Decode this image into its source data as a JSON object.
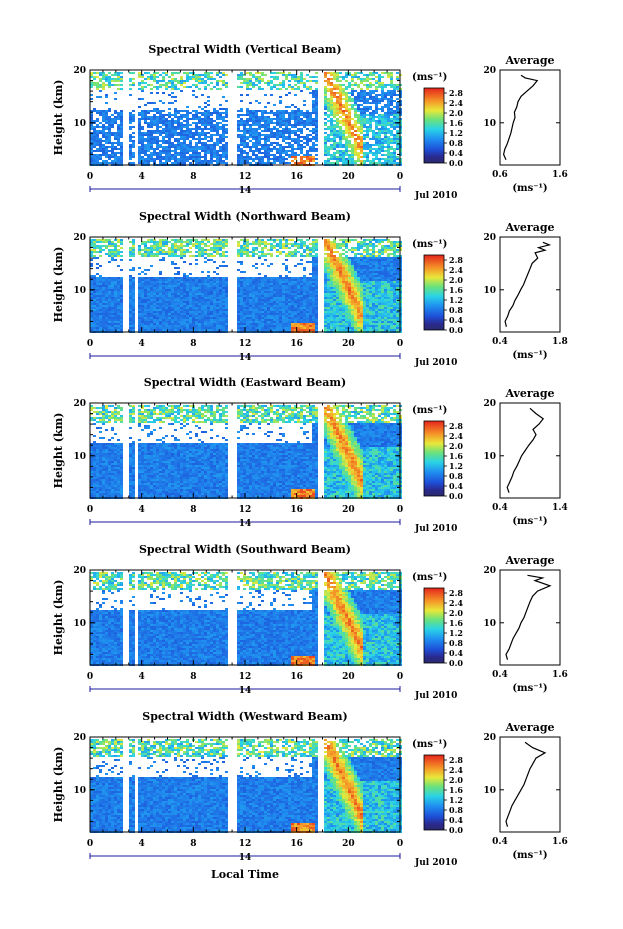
{
  "figure": {
    "xlabel": "Local Time",
    "date_label": "Jul 2010",
    "day_label": "14"
  },
  "chart_data": [
    {
      "type": "heatmap",
      "title": "Spectral Width (Vertical Beam)",
      "ylabel": "Height (km)",
      "x_ticks": [
        "0",
        "4",
        "8",
        "12",
        "16",
        "20",
        "0"
      ],
      "y_ticks": [
        "20",
        "10"
      ],
      "xlim": [
        0,
        24
      ],
      "ylim": [
        2,
        20
      ],
      "colorbar": {
        "unit": "(ms⁻¹)",
        "ticks": [
          "2.8",
          "2.4",
          "2.0",
          "1.6",
          "1.2",
          "0.8",
          "0.4",
          "0.0"
        ],
        "range": [
          0,
          3.0
        ]
      },
      "average": {
        "title": "Average",
        "x_ticks": [
          "0.6",
          "1.6"
        ],
        "xlim": [
          0.6,
          1.6
        ],
        "ylim": [
          2,
          20
        ],
        "y_ticks": [
          "20",
          "10"
        ],
        "xlabel": "(ms⁻¹)",
        "profile": [
          [
            0.7,
            3
          ],
          [
            0.66,
            4
          ],
          [
            0.68,
            5
          ],
          [
            0.72,
            6
          ],
          [
            0.75,
            7
          ],
          [
            0.78,
            8
          ],
          [
            0.8,
            9
          ],
          [
            0.82,
            10
          ],
          [
            0.85,
            11
          ],
          [
            0.84,
            12
          ],
          [
            0.88,
            13
          ],
          [
            0.9,
            14
          ],
          [
            0.95,
            15
          ],
          [
            1.05,
            16
          ],
          [
            1.15,
            17
          ],
          [
            1.22,
            18
          ],
          [
            1.02,
            18.5
          ],
          [
            0.95,
            19
          ]
        ]
      }
    },
    {
      "type": "heatmap",
      "title": "Spectral Width (Northward Beam)",
      "ylabel": "Height (km)",
      "x_ticks": [
        "0",
        "4",
        "8",
        "12",
        "16",
        "20",
        "0"
      ],
      "y_ticks": [
        "20",
        "10"
      ],
      "xlim": [
        0,
        24
      ],
      "ylim": [
        2,
        20
      ],
      "colorbar": {
        "unit": "(ms⁻¹)",
        "ticks": [
          "2.8",
          "2.4",
          "2.0",
          "1.6",
          "1.2",
          "0.8",
          "0.4",
          "0.0"
        ],
        "range": [
          0,
          3.0
        ]
      },
      "average": {
        "title": "Average",
        "x_ticks": [
          "0.4",
          "1.8"
        ],
        "xlim": [
          0.4,
          1.8
        ],
        "ylim": [
          2,
          20
        ],
        "y_ticks": [
          "20",
          "10"
        ],
        "xlabel": "(ms⁻¹)",
        "profile": [
          [
            0.55,
            3
          ],
          [
            0.52,
            4
          ],
          [
            0.58,
            5
          ],
          [
            0.62,
            6
          ],
          [
            0.7,
            7
          ],
          [
            0.75,
            8
          ],
          [
            0.82,
            9
          ],
          [
            0.88,
            10
          ],
          [
            0.95,
            11
          ],
          [
            1.0,
            12
          ],
          [
            1.05,
            13
          ],
          [
            1.1,
            14
          ],
          [
            1.15,
            15
          ],
          [
            1.28,
            16
          ],
          [
            1.22,
            17
          ],
          [
            1.45,
            17.5
          ],
          [
            1.3,
            18
          ],
          [
            1.55,
            18.5
          ],
          [
            1.4,
            19
          ]
        ]
      }
    },
    {
      "type": "heatmap",
      "title": "Spectral Width (Eastward Beam)",
      "ylabel": "Height (km)",
      "x_ticks": [
        "0",
        "4",
        "8",
        "12",
        "16",
        "20",
        "0"
      ],
      "y_ticks": [
        "20",
        "10"
      ],
      "xlim": [
        0,
        24
      ],
      "ylim": [
        2,
        20
      ],
      "colorbar": {
        "unit": "(ms⁻¹)",
        "ticks": [
          "2.8",
          "2.4",
          "2.0",
          "1.6",
          "1.2",
          "0.8",
          "0.4",
          "0.0"
        ],
        "range": [
          0,
          3.0
        ]
      },
      "average": {
        "title": "Average",
        "x_ticks": [
          "0.4",
          "1.4"
        ],
        "xlim": [
          0.4,
          1.4
        ],
        "ylim": [
          2,
          20
        ],
        "y_ticks": [
          "20",
          "10"
        ],
        "xlabel": "(ms⁻¹)",
        "profile": [
          [
            0.55,
            3
          ],
          [
            0.52,
            4
          ],
          [
            0.56,
            5
          ],
          [
            0.6,
            6
          ],
          [
            0.63,
            7
          ],
          [
            0.68,
            8
          ],
          [
            0.72,
            9
          ],
          [
            0.76,
            10
          ],
          [
            0.82,
            11
          ],
          [
            0.88,
            12
          ],
          [
            0.95,
            13
          ],
          [
            1.0,
            14
          ],
          [
            0.95,
            15
          ],
          [
            1.05,
            16
          ],
          [
            1.12,
            17
          ],
          [
            1.0,
            18
          ],
          [
            0.9,
            19
          ]
        ]
      }
    },
    {
      "type": "heatmap",
      "title": "Spectral Width (Southward Beam)",
      "ylabel": "Height (km)",
      "x_ticks": [
        "0",
        "4",
        "8",
        "12",
        "16",
        "20",
        "0"
      ],
      "y_ticks": [
        "20",
        "10"
      ],
      "xlim": [
        0,
        24
      ],
      "ylim": [
        2,
        20
      ],
      "colorbar": {
        "unit": "(ms⁻¹)",
        "ticks": [
          "2.8",
          "2.4",
          "2.0",
          "1.6",
          "1.2",
          "0.8",
          "0.4",
          "0.0"
        ],
        "range": [
          0,
          3.0
        ]
      },
      "average": {
        "title": "Average",
        "x_ticks": [
          "0.4",
          "1.6"
        ],
        "xlim": [
          0.4,
          1.6
        ],
        "ylim": [
          2,
          20
        ],
        "y_ticks": [
          "20",
          "10"
        ],
        "xlabel": "(ms⁻¹)",
        "profile": [
          [
            0.55,
            3
          ],
          [
            0.52,
            4
          ],
          [
            0.58,
            5
          ],
          [
            0.62,
            6
          ],
          [
            0.66,
            7
          ],
          [
            0.72,
            8
          ],
          [
            0.78,
            9
          ],
          [
            0.82,
            10
          ],
          [
            0.88,
            11
          ],
          [
            0.92,
            12
          ],
          [
            0.96,
            13
          ],
          [
            1.0,
            14
          ],
          [
            1.05,
            15
          ],
          [
            1.15,
            16
          ],
          [
            1.4,
            17
          ],
          [
            1.1,
            18
          ],
          [
            1.25,
            18.5
          ],
          [
            0.95,
            19
          ]
        ]
      }
    },
    {
      "type": "heatmap",
      "title": "Spectral Width (Westward Beam)",
      "ylabel": "Height (km)",
      "x_ticks": [
        "0",
        "4",
        "8",
        "12",
        "16",
        "20",
        "0"
      ],
      "y_ticks": [
        "20",
        "10"
      ],
      "xlim": [
        0,
        24
      ],
      "ylim": [
        2,
        20
      ],
      "colorbar": {
        "unit": "(ms⁻¹)",
        "ticks": [
          "2.8",
          "2.4",
          "2.0",
          "1.6",
          "1.2",
          "0.8",
          "0.4",
          "0.0"
        ],
        "range": [
          0,
          3.0
        ]
      },
      "average": {
        "title": "Average",
        "x_ticks": [
          "0.4",
          "1.6"
        ],
        "xlim": [
          0.4,
          1.6
        ],
        "ylim": [
          2,
          20
        ],
        "y_ticks": [
          "20",
          "10"
        ],
        "xlabel": "(ms⁻¹)",
        "profile": [
          [
            0.55,
            3
          ],
          [
            0.52,
            4
          ],
          [
            0.56,
            5
          ],
          [
            0.6,
            6
          ],
          [
            0.64,
            7
          ],
          [
            0.7,
            8
          ],
          [
            0.76,
            9
          ],
          [
            0.82,
            10
          ],
          [
            0.88,
            11
          ],
          [
            0.92,
            12
          ],
          [
            0.96,
            13
          ],
          [
            1.0,
            14
          ],
          [
            1.06,
            15
          ],
          [
            1.12,
            16
          ],
          [
            1.3,
            17
          ],
          [
            1.05,
            18
          ],
          [
            0.9,
            19
          ]
        ]
      }
    }
  ]
}
